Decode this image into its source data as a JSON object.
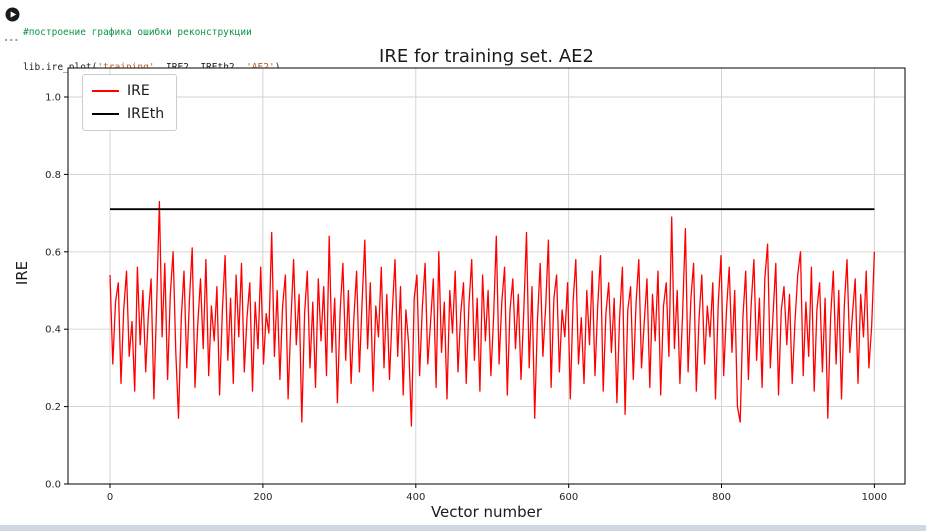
{
  "cell": {
    "collapse_indicator": "...",
    "comment_line": "#построение графика ошибки реконструкции",
    "code_tokens": [
      {
        "text": "lib.ire_plot(",
        "type": "code"
      },
      {
        "text": "'training'",
        "type": "string"
      },
      {
        "text": ", IRE2, IREth2, ",
        "type": "code"
      },
      {
        "text": "'AE2'",
        "type": "string"
      },
      {
        "text": ")",
        "type": "code"
      }
    ]
  },
  "colors": {
    "code": "#1f1f1f",
    "comment": "#0e9349",
    "string": "#c15c1d",
    "series_ire": "#ff0000",
    "series_ireth": "#000000",
    "grid": "#d0d0d0",
    "axis_text": "#262626"
  },
  "chart_data": {
    "type": "line",
    "title": "IRE for training set. AE2",
    "xlabel": "Vector number",
    "ylabel": "IRE",
    "xlim": [
      -55,
      1040
    ],
    "ylim": [
      0,
      1.075
    ],
    "xticks": [
      0,
      200,
      400,
      600,
      800,
      1000
    ],
    "yticks": [
      0.0,
      0.2,
      0.4,
      0.6,
      0.8,
      1.0
    ],
    "grid": true,
    "grid_color": "#d0d0d0",
    "legend": {
      "position": "upper left",
      "entries": [
        {
          "label": "IRE",
          "color": "#ff0000"
        },
        {
          "label": "IREth",
          "color": "#000000"
        }
      ]
    },
    "series": [
      {
        "name": "IRE",
        "type": "noisy-line",
        "color": "#ff0000",
        "x_start": 0,
        "x_end": 1000,
        "values": [
          0.54,
          0.31,
          0.47,
          0.52,
          0.26,
          0.45,
          0.55,
          0.33,
          0.42,
          0.24,
          0.56,
          0.36,
          0.5,
          0.29,
          0.44,
          0.53,
          0.22,
          0.46,
          0.73,
          0.38,
          0.57,
          0.27,
          0.49,
          0.6,
          0.34,
          0.17,
          0.43,
          0.55,
          0.3,
          0.48,
          0.61,
          0.25,
          0.41,
          0.53,
          0.35,
          0.58,
          0.28,
          0.46,
          0.37,
          0.51,
          0.23,
          0.45,
          0.59,
          0.32,
          0.48,
          0.26,
          0.54,
          0.38,
          0.57,
          0.29,
          0.43,
          0.52,
          0.24,
          0.47,
          0.35,
          0.56,
          0.31,
          0.44,
          0.39,
          0.65,
          0.33,
          0.5,
          0.27,
          0.46,
          0.54,
          0.22,
          0.42,
          0.58,
          0.36,
          0.49,
          0.16,
          0.44,
          0.55,
          0.3,
          0.47,
          0.25,
          0.53,
          0.37,
          0.51,
          0.28,
          0.64,
          0.34,
          0.48,
          0.21,
          0.45,
          0.57,
          0.32,
          0.5,
          0.26,
          0.43,
          0.55,
          0.29,
          0.47,
          0.63,
          0.35,
          0.52,
          0.24,
          0.46,
          0.38,
          0.56,
          0.3,
          0.49,
          0.27,
          0.44,
          0.58,
          0.33,
          0.51,
          0.23,
          0.45,
          0.36,
          0.15,
          0.48,
          0.54,
          0.28,
          0.46,
          0.57,
          0.31,
          0.42,
          0.53,
          0.25,
          0.6,
          0.34,
          0.47,
          0.22,
          0.5,
          0.39,
          0.55,
          0.29,
          0.44,
          0.52,
          0.26,
          0.46,
          0.58,
          0.32,
          0.48,
          0.24,
          0.54,
          0.37,
          0.5,
          0.28,
          0.43,
          0.64,
          0.31,
          0.47,
          0.56,
          0.23,
          0.45,
          0.53,
          0.35,
          0.49,
          0.27,
          0.44,
          0.65,
          0.3,
          0.51,
          0.17,
          0.42,
          0.57,
          0.33,
          0.46,
          0.63,
          0.25,
          0.48,
          0.54,
          0.29,
          0.45,
          0.38,
          0.52,
          0.22,
          0.47,
          0.58,
          0.31,
          0.43,
          0.26,
          0.5,
          0.36,
          0.55,
          0.28,
          0.46,
          0.59,
          0.24,
          0.44,
          0.52,
          0.34,
          0.48,
          0.21,
          0.43,
          0.56,
          0.18,
          0.45,
          0.51,
          0.27,
          0.47,
          0.58,
          0.3,
          0.42,
          0.53,
          0.25,
          0.49,
          0.37,
          0.55,
          0.23,
          0.46,
          0.52,
          0.33,
          0.69,
          0.35,
          0.5,
          0.26,
          0.44,
          0.66,
          0.29,
          0.48,
          0.57,
          0.24,
          0.43,
          0.54,
          0.31,
          0.46,
          0.38,
          0.52,
          0.22,
          0.47,
          0.59,
          0.28,
          0.45,
          0.56,
          0.34,
          0.5,
          0.2,
          0.16,
          0.43,
          0.55,
          0.27,
          0.46,
          0.58,
          0.32,
          0.48,
          0.25,
          0.53,
          0.62,
          0.3,
          0.44,
          0.57,
          0.23,
          0.45,
          0.51,
          0.36,
          0.49,
          0.26,
          0.42,
          0.54,
          0.6,
          0.28,
          0.47,
          0.33,
          0.56,
          0.24,
          0.45,
          0.52,
          0.29,
          0.48,
          0.17,
          0.43,
          0.55,
          0.31,
          0.5,
          0.22,
          0.46,
          0.58,
          0.34,
          0.44,
          0.53,
          0.26,
          0.49,
          0.38,
          0.55,
          0.3,
          0.41,
          0.6
        ]
      },
      {
        "name": "IREth",
        "type": "hline",
        "color": "#000000",
        "y": 0.71,
        "x_start": 0,
        "x_end": 1000
      }
    ]
  }
}
